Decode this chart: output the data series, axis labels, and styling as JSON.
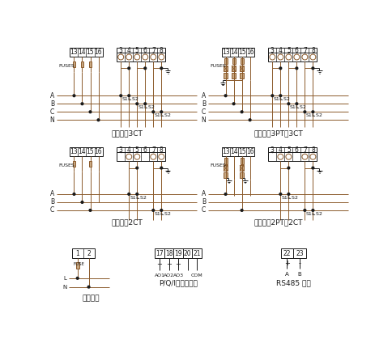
{
  "bg_color": "#ffffff",
  "line_color": "#8B5A2B",
  "black_color": "#1a1a1a",
  "fuse_color": "#c8a882",
  "title1": "三相四线3CT",
  "title2": "三相四线3PT、3CT",
  "title3": "三相三线2CT",
  "title4": "三相三线2PT、2CT",
  "title5": "辅助电源",
  "title6": "P/Q/I模拟量输出",
  "title7": "RS485 通讯"
}
